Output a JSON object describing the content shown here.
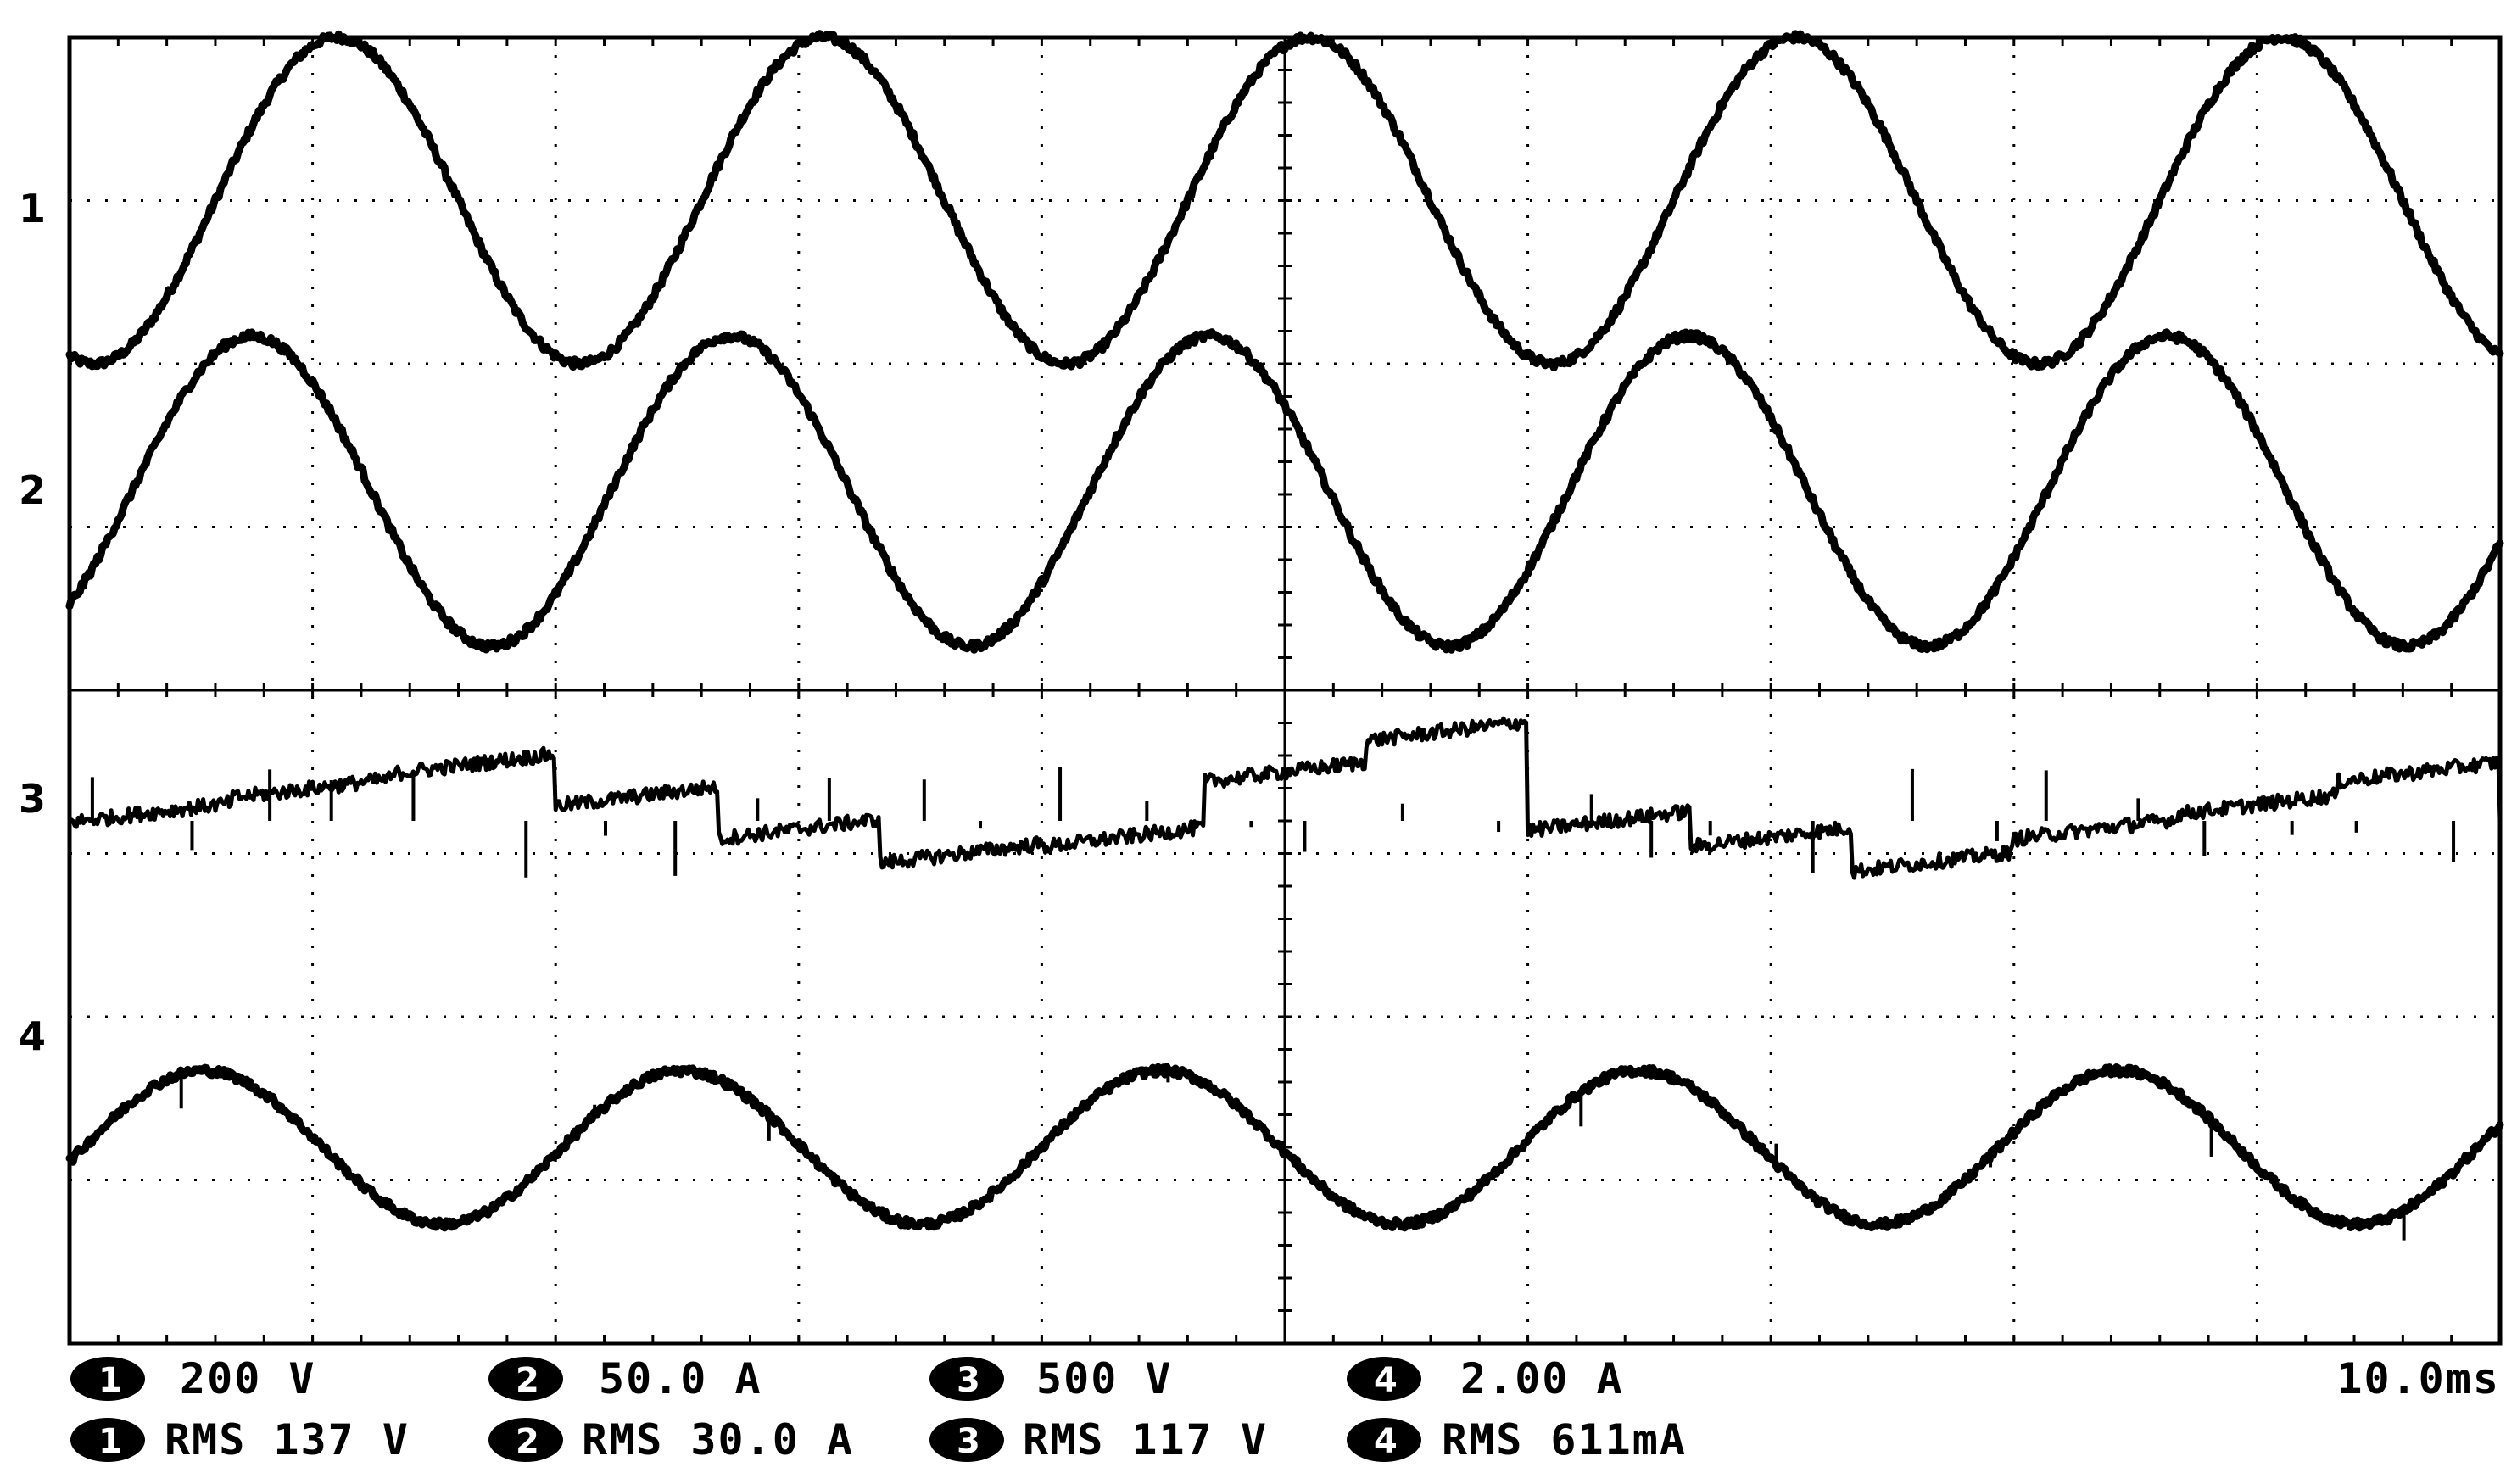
{
  "chart_data": {
    "type": "line",
    "instrument": "oscilloscope",
    "divisions": {
      "horizontal": 10,
      "vertical": 8
    },
    "time_per_div": "10.0ms",
    "grid": true,
    "channels": [
      {
        "id": "1",
        "label": "1",
        "scale": "200 V",
        "measurement": "RMS 137 V",
        "offset_div": 3.0,
        "amplitude_div": 1.0,
        "period_div": 2.0,
        "phase_div": 1.1,
        "kind": "sine"
      },
      {
        "id": "2",
        "label": "2",
        "scale": "50.0 A",
        "measurement": "RMS 30.0 A",
        "offset_div": 1.22,
        "amplitude_div": 0.95,
        "period_div": 1.97,
        "phase_div": 0.75,
        "kind": "sine"
      },
      {
        "id": "3",
        "label": "3",
        "scale": "500 V",
        "measurement": "RMS 117 V",
        "offset_div": -0.8,
        "amplitude_div": 0.3,
        "period_div": 2.0,
        "phase_div": 0.0,
        "kind": "stepped"
      },
      {
        "id": "4",
        "label": "4",
        "scale": "2.00 A",
        "measurement": "RMS 611mA",
        "offset_div": -2.8,
        "amplitude_div": 0.47,
        "period_div": 1.97,
        "phase_div": 0.55,
        "kind": "sine"
      }
    ]
  },
  "readouts": {
    "ch1_badge": "1",
    "ch2_badge": "2",
    "ch3_badge": "3",
    "ch4_badge": "4",
    "ch1_scale": "200 V",
    "ch2_scale": "50.0 A",
    "ch3_scale": "500 V",
    "ch4_scale": "2.00 A",
    "ch1_rms": "RMS 137 V",
    "ch2_rms": "RMS 30.0 A",
    "ch3_rms": "RMS 117 V",
    "ch4_rms": "RMS 611mA",
    "timebase": "10.0ms"
  },
  "channel_labels": {
    "ch1": "1",
    "ch2": "2",
    "ch3": "3",
    "ch4": "4"
  }
}
